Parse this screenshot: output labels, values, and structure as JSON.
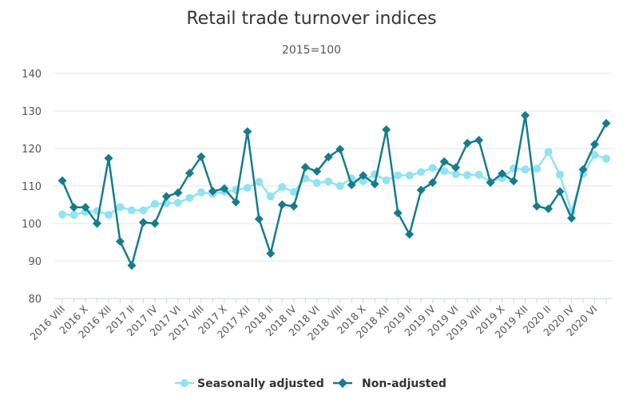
{
  "chart_data": {
    "type": "line",
    "title": "Retail trade turnover indices",
    "subtitle": "2015=100",
    "xlabel": "",
    "ylabel": "",
    "ylim": [
      80,
      140
    ],
    "yticks": [
      80,
      90,
      100,
      110,
      120,
      130,
      140
    ],
    "grid": true,
    "legend_position": "bottom",
    "categories": [
      "2016 VIII",
      "2016 IX",
      "2016 X",
      "2016 XI",
      "2016 XII",
      "2017 I",
      "2017 II",
      "2017 III",
      "2017 IV",
      "2017 V",
      "2017 VI",
      "2017 VII",
      "2017 VIII",
      "2017 IX",
      "2017 X",
      "2017 XI",
      "2017 XII",
      "2018 I",
      "2018 II",
      "2018 III",
      "2018 IV",
      "2018 V",
      "2018 VI",
      "2018 VII",
      "2018 VIII",
      "2018 IX",
      "2018 X",
      "2018 XI",
      "2018 XII",
      "2019 I",
      "2019 II",
      "2019 III",
      "2019 IV",
      "2019 V",
      "2019 VI",
      "2019 VII",
      "2019 VIII",
      "2019 IX",
      "2019 X",
      "2019 XI",
      "2019 XII",
      "2020 I",
      "2020 II",
      "2020 III",
      "2020 IV",
      "2020 V",
      "2020 VI",
      "2020 VII"
    ],
    "xtick_labels": [
      "2016 VIII",
      "2016 X",
      "2016 XII",
      "2017 II",
      "2017 IV",
      "2017 VI",
      "2017 VIII",
      "2017 X",
      "2017 XII",
      "2018 II",
      "2018 IV",
      "2018 VI",
      "2018 VIII",
      "2018 X",
      "2018 XII",
      "2019 II",
      "2019 IV",
      "2019 VI",
      "2019 VIII",
      "2019 X",
      "2019 XII",
      "2020 II",
      "2020 IV",
      "2020 VI"
    ],
    "series": [
      {
        "name": "Seasonally adjusted",
        "color": "#8fe3f2",
        "marker": "circle",
        "values": [
          102.4,
          102.3,
          103.1,
          103.3,
          102.3,
          104.4,
          103.5,
          103.5,
          105.2,
          105.4,
          105.5,
          106.8,
          108.3,
          107.9,
          108.5,
          108.9,
          109.5,
          111.1,
          107.2,
          109.7,
          108.4,
          112.0,
          110.8,
          111.2,
          110.0,
          112.0,
          111.3,
          113.1,
          111.5,
          112.8,
          112.8,
          113.7,
          114.8,
          114.0,
          113.1,
          112.9,
          113.0,
          111.2,
          112.1,
          114.7,
          114.4,
          114.6,
          119.1,
          113.0,
          103.2,
          113.2,
          118.3,
          117.3
        ]
      },
      {
        "name": "Non-adjusted",
        "color": "#157c8e",
        "marker": "diamond",
        "values": [
          111.4,
          104.3,
          104.3,
          100.0,
          117.4,
          95.2,
          88.8,
          100.3,
          100.0,
          107.2,
          108.2,
          113.4,
          117.8,
          108.6,
          109.3,
          105.7,
          124.5,
          101.2,
          92.0,
          105.0,
          104.6,
          115.0,
          113.9,
          117.7,
          119.8,
          110.3,
          112.8,
          110.5,
          125.0,
          102.8,
          97.1,
          108.9,
          110.9,
          116.5,
          114.9,
          121.4,
          122.2,
          110.9,
          113.3,
          111.3,
          128.8,
          104.6,
          103.9,
          108.5,
          101.4,
          114.4,
          121.1,
          126.7
        ]
      }
    ]
  }
}
